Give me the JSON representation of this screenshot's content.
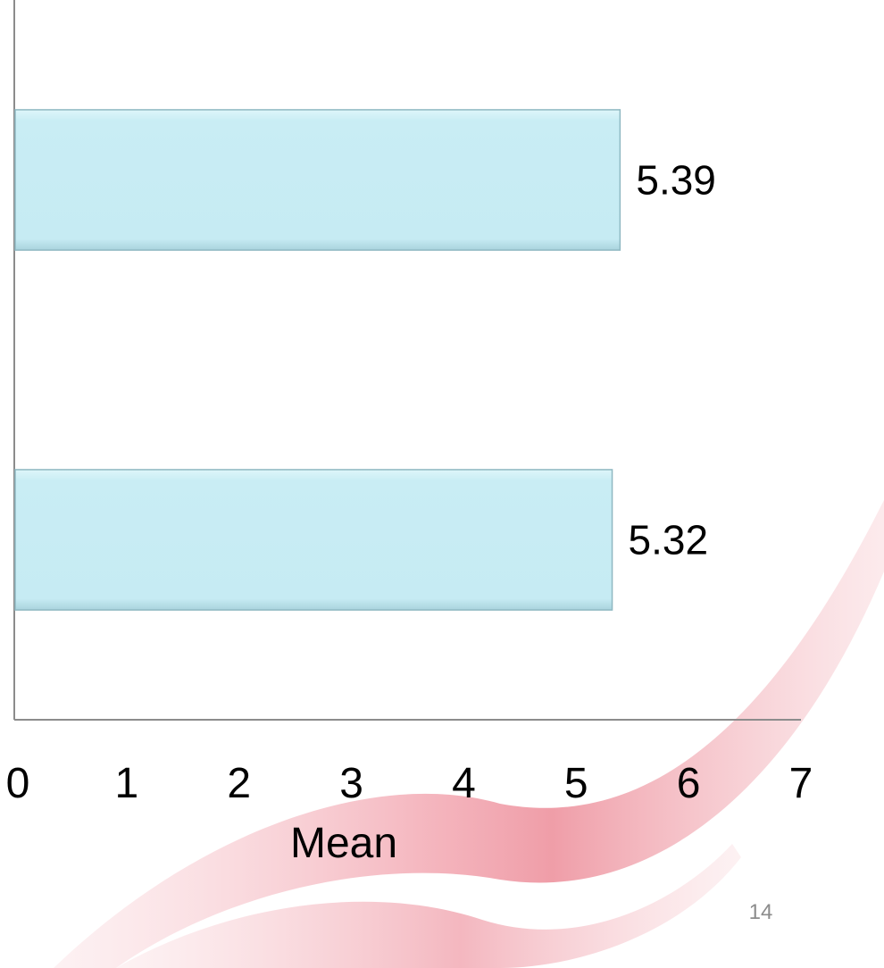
{
  "chart_data": {
    "type": "bar",
    "orientation": "horizontal",
    "categories": [
      "",
      ""
    ],
    "values": [
      5.39,
      5.32
    ],
    "data_labels": [
      "5.39",
      "5.32"
    ],
    "title": "",
    "xlabel": "Mean",
    "ylabel": "",
    "xlim": [
      0,
      7
    ],
    "x_ticks": [
      "0",
      "1",
      "2",
      "3",
      "4",
      "5",
      "6",
      "7"
    ],
    "grid": false,
    "legend": "none",
    "bar_color": "#c8edf4",
    "bar_border_color": "#8fb8c2"
  },
  "slide": {
    "page_number": "14",
    "accent_color": "#e8606e"
  }
}
